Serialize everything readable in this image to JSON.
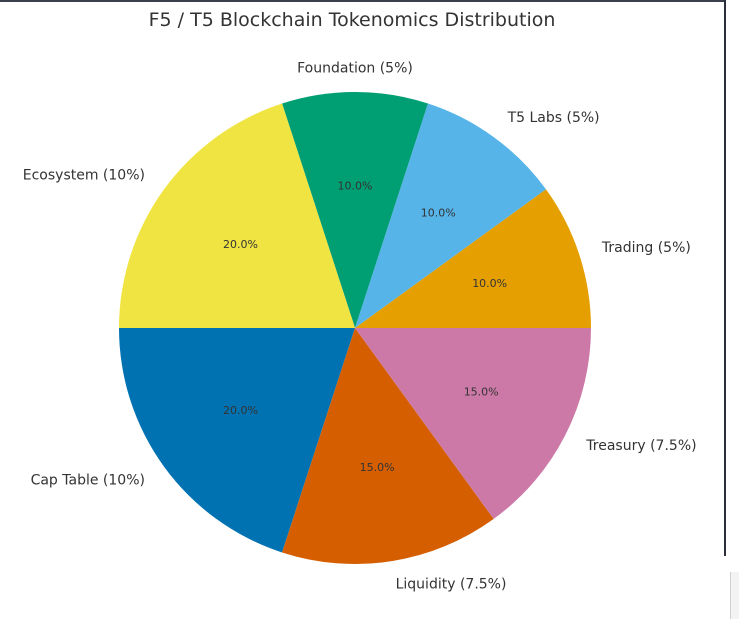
{
  "chart_data": {
    "type": "pie",
    "title": "F5 / T5 Blockchain Tokenomics Distribution",
    "start_angle_deg": 0,
    "direction": "counterclockwise",
    "slices": [
      {
        "label": "Trading (5%)",
        "value": 10.0,
        "pct_label": "10.0%",
        "color": "#e69f00"
      },
      {
        "label": "T5 Labs (5%)",
        "value": 10.0,
        "pct_label": "10.0%",
        "color": "#56b4e9"
      },
      {
        "label": "Foundation (5%)",
        "value": 10.0,
        "pct_label": "10.0%",
        "color": "#009e73"
      },
      {
        "label": "Ecosystem (10%)",
        "value": 20.0,
        "pct_label": "20.0%",
        "color": "#f0e442"
      },
      {
        "label": "Cap Table (10%)",
        "value": 20.0,
        "pct_label": "20.0%",
        "color": "#0072b2"
      },
      {
        "label": "Liquidity (7.5%)",
        "value": 15.0,
        "pct_label": "15.0%",
        "color": "#d55e00"
      },
      {
        "label": "Treasury (7.5%)",
        "value": 15.0,
        "pct_label": "15.0%",
        "color": "#cc79a7"
      }
    ]
  }
}
